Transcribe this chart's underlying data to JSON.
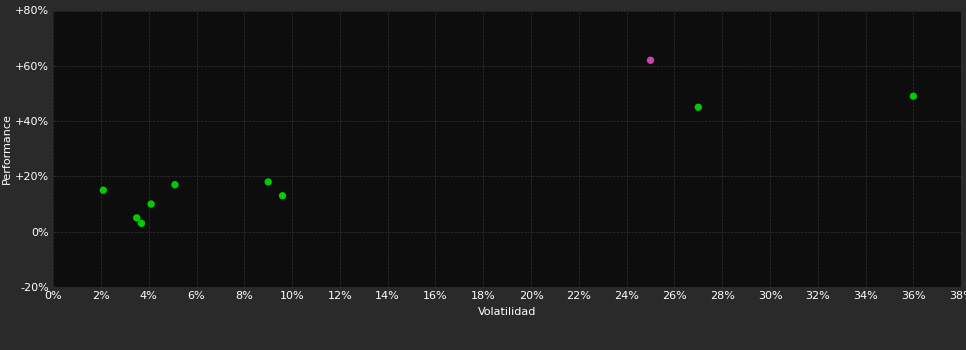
{
  "background_color": "#2a2a2a",
  "plot_bg_color": "#0d0d0d",
  "grid_color": "#333333",
  "text_color": "#ffffff",
  "xlabel": "Volatilidad",
  "ylabel": "Performance",
  "x_ticks": [
    0,
    2,
    4,
    6,
    8,
    10,
    12,
    14,
    16,
    18,
    20,
    22,
    24,
    26,
    28,
    30,
    32,
    34,
    36,
    38
  ],
  "y_ticks": [
    -20,
    0,
    20,
    40,
    60,
    80
  ],
  "xlim": [
    0,
    38
  ],
  "ylim": [
    -20,
    80
  ],
  "green_points": [
    [
      2.1,
      15
    ],
    [
      3.5,
      5
    ],
    [
      3.7,
      3
    ],
    [
      4.1,
      10
    ],
    [
      5.1,
      17
    ],
    [
      9.0,
      18
    ],
    [
      9.6,
      13
    ],
    [
      27.0,
      45
    ],
    [
      36.0,
      49
    ]
  ],
  "magenta_points": [
    [
      25.0,
      62
    ]
  ],
  "green_color": "#00cc00",
  "magenta_color": "#cc44aa",
  "marker_size": 28,
  "label_fontsize": 8,
  "tick_fontsize": 8
}
